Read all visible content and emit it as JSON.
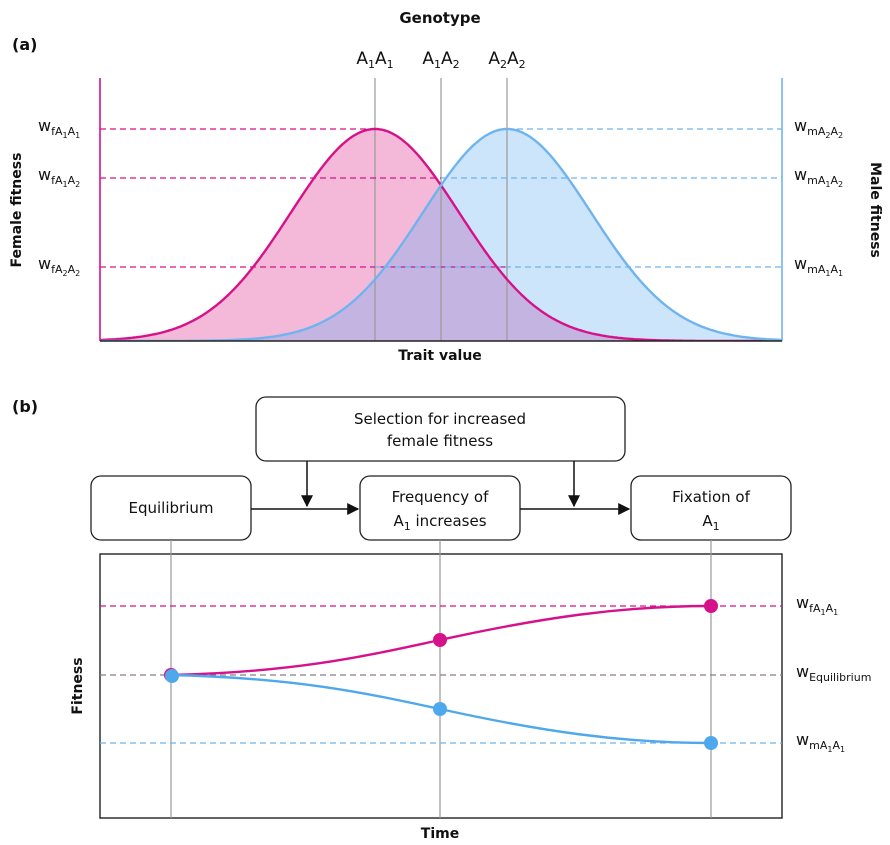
{
  "panel_a": {
    "label": "(a)",
    "title": "Genotype",
    "xlabel": "Trait value",
    "ylabel_left": "Female fitness",
    "ylabel_right": "Male fitness",
    "genotypes": [
      {
        "letter1": "A",
        "sub1": "1",
        "letter2": "A",
        "sub2": "1"
      },
      {
        "letter1": "A",
        "sub1": "1",
        "letter2": "A",
        "sub2": "2"
      },
      {
        "letter1": "A",
        "sub1": "2",
        "letter2": "A",
        "sub2": "2"
      }
    ],
    "female_levels": [
      {
        "w": "w",
        "sex": "f",
        "g": [
          "A",
          "1",
          "A",
          "1"
        ]
      },
      {
        "w": "w",
        "sex": "f",
        "g": [
          "A",
          "1",
          "A",
          "2"
        ]
      },
      {
        "w": "w",
        "sex": "f",
        "g": [
          "A",
          "2",
          "A",
          "2"
        ]
      }
    ],
    "male_levels": [
      {
        "w": "w",
        "sex": "m",
        "g": [
          "A",
          "2",
          "A",
          "2"
        ]
      },
      {
        "w": "w",
        "sex": "m",
        "g": [
          "A",
          "1",
          "A",
          "2"
        ]
      },
      {
        "w": "w",
        "sex": "m",
        "g": [
          "A",
          "1",
          "A",
          "1"
        ]
      }
    ],
    "colors": {
      "female": "#d6128a",
      "female_fill": "#f4b8d8",
      "male": "#6fb4ee",
      "male_fill": "#cce5fa",
      "overlap": "#c4b4e2",
      "gridline": "#999999"
    }
  },
  "panel_b": {
    "label": "(b)",
    "selection_box": [
      "Selection for increased",
      "female fitness"
    ],
    "boxes": {
      "equilibrium": [
        "Equilibrium"
      ],
      "frequency": [
        "Frequency of",
        "A",
        "1",
        " increases"
      ],
      "fixation": [
        "Fixation of",
        "A",
        "1"
      ]
    },
    "ylabel": "Fitness",
    "xlabel": "Time",
    "right_labels": {
      "female": {
        "w": "w",
        "sex": "f",
        "g": [
          "A",
          "1",
          "A",
          "1"
        ]
      },
      "equilibrium": {
        "w": "w",
        "sub": "Equilibrium"
      },
      "male": {
        "w": "w",
        "sex": "m",
        "g": [
          "A",
          "1",
          "A",
          "1"
        ]
      }
    },
    "colors": {
      "female": "#d6128a",
      "male": "#4fa8ec",
      "equilibrium_line": "#8a7a8a"
    }
  }
}
